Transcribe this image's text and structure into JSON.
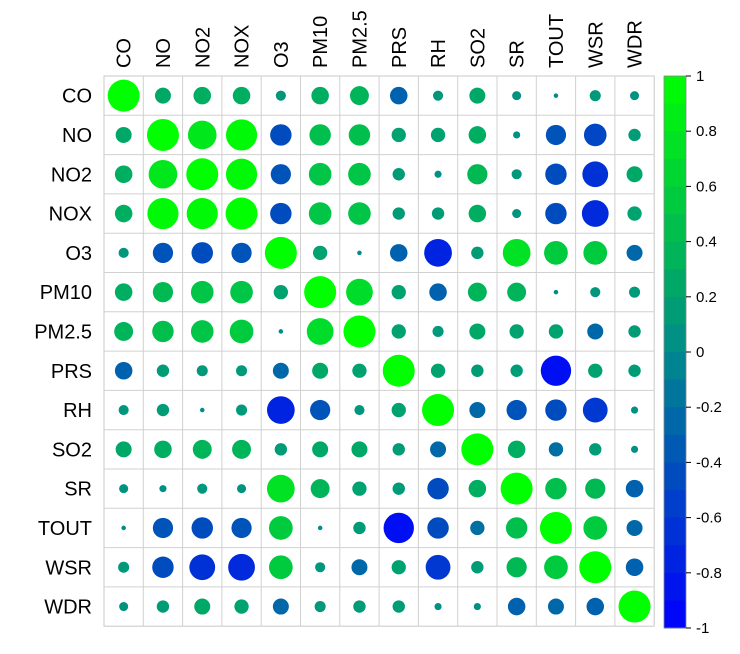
{
  "chart_data": {
    "type": "heatmap",
    "subtype": "correlation-matrix-circles",
    "variables": [
      "CO",
      "NO",
      "NO2",
      "NOX",
      "O3",
      "PM10",
      "PM2.5",
      "PRS",
      "RH",
      "SO2",
      "SR",
      "TOUT",
      "WSR",
      "WDR"
    ],
    "matrix": [
      [
        1.0,
        0.25,
        0.3,
        0.3,
        0.1,
        0.3,
        0.35,
        -0.3,
        0.1,
        0.25,
        0.08,
        0.02,
        0.12,
        0.08
      ],
      [
        0.25,
        1.0,
        0.8,
        0.95,
        -0.45,
        0.45,
        0.45,
        0.2,
        0.2,
        0.3,
        0.05,
        -0.4,
        -0.5,
        0.15
      ],
      [
        0.3,
        0.8,
        1.0,
        0.95,
        -0.4,
        0.5,
        0.5,
        0.15,
        0.05,
        0.4,
        0.1,
        -0.45,
        -0.65,
        0.25
      ],
      [
        0.3,
        0.95,
        0.95,
        1.0,
        -0.45,
        0.5,
        0.5,
        0.15,
        0.15,
        0.3,
        0.08,
        -0.45,
        -0.7,
        0.2
      ],
      [
        0.1,
        -0.4,
        -0.45,
        -0.4,
        1.0,
        0.2,
        0.02,
        -0.3,
        -0.75,
        0.15,
        0.75,
        0.55,
        0.55,
        -0.25
      ],
      [
        0.3,
        0.4,
        0.5,
        0.5,
        0.2,
        1.0,
        0.7,
        0.2,
        -0.3,
        0.35,
        0.35,
        0.02,
        0.1,
        0.12
      ],
      [
        0.35,
        0.45,
        0.5,
        0.55,
        0.02,
        0.7,
        1.0,
        0.2,
        0.12,
        0.25,
        0.2,
        0.2,
        -0.25,
        0.15
      ],
      [
        -0.3,
        0.15,
        0.12,
        0.12,
        -0.25,
        0.25,
        0.2,
        1.0,
        0.2,
        0.15,
        0.15,
        -0.9,
        0.2,
        0.15
      ],
      [
        0.1,
        0.15,
        0.02,
        0.12,
        -0.75,
        -0.4,
        0.1,
        0.2,
        1.0,
        -0.25,
        -0.4,
        -0.45,
        -0.6,
        0.05
      ],
      [
        0.25,
        0.3,
        0.35,
        0.35,
        0.15,
        0.25,
        0.25,
        0.15,
        -0.25,
        1.0,
        0.3,
        -0.2,
        0.15,
        0.05
      ],
      [
        0.08,
        0.05,
        0.1,
        0.08,
        0.75,
        0.35,
        0.2,
        0.15,
        -0.45,
        0.3,
        1.0,
        0.45,
        0.4,
        -0.3
      ],
      [
        0.02,
        -0.4,
        -0.45,
        -0.4,
        0.55,
        0.02,
        0.15,
        -0.9,
        -0.45,
        -0.2,
        0.45,
        1.0,
        0.55,
        -0.25
      ],
      [
        0.12,
        -0.45,
        -0.65,
        -0.7,
        0.55,
        0.1,
        -0.25,
        0.2,
        -0.6,
        0.15,
        0.4,
        0.55,
        1.0,
        -0.3
      ],
      [
        0.08,
        0.15,
        0.25,
        0.2,
        -0.25,
        0.12,
        0.15,
        0.15,
        0.05,
        0.05,
        -0.3,
        -0.25,
        -0.3,
        1.0
      ]
    ],
    "color_scale": {
      "min": -1,
      "max": 1,
      "low_color": "#0000ff",
      "mid_color": "#008b8b",
      "high_color": "#00ff00"
    },
    "colorbar_ticks": [
      {
        "value": 1,
        "label": "1"
      },
      {
        "value": 0.8,
        "label": "0.8"
      },
      {
        "value": 0.6,
        "label": "0.6"
      },
      {
        "value": 0.4,
        "label": "0.4"
      },
      {
        "value": 0.2,
        "label": "0.2"
      },
      {
        "value": 0,
        "label": "0"
      },
      {
        "value": -0.2,
        "label": "-0.2"
      },
      {
        "value": -0.4,
        "label": "-0.4"
      },
      {
        "value": -0.6,
        "label": "-0.6"
      },
      {
        "value": -0.8,
        "label": "-0.8"
      },
      {
        "value": -1,
        "label": "-1"
      }
    ],
    "grid": true,
    "legend": "right",
    "title": "",
    "xlabel": "",
    "ylabel": ""
  }
}
